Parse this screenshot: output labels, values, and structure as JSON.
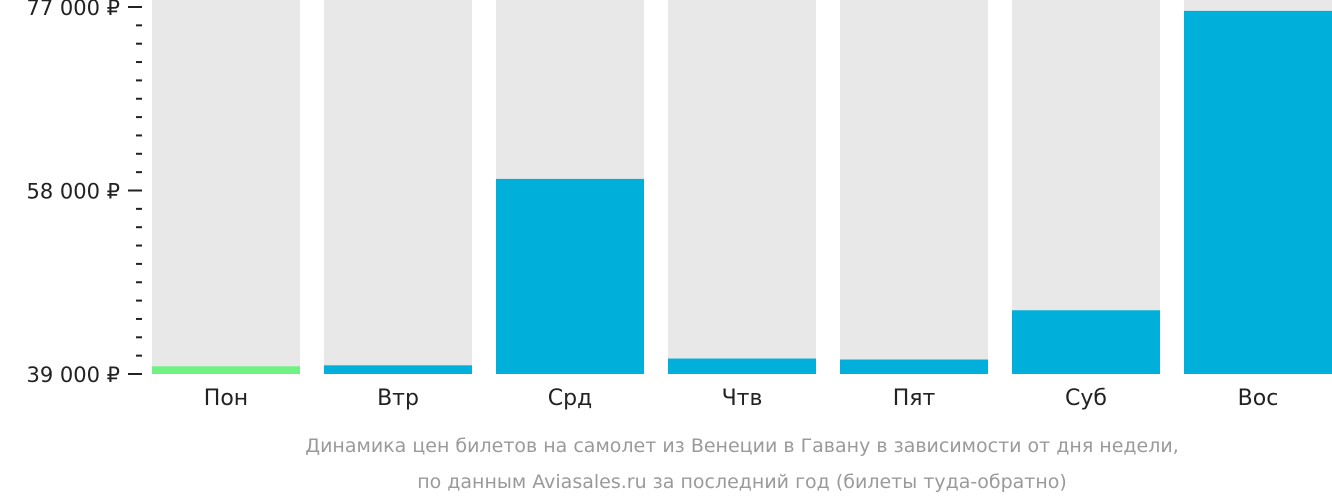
{
  "chart_data": {
    "type": "bar",
    "categories": [
      "Пон",
      "Втр",
      "Срд",
      "Чтв",
      "Пят",
      "Суб",
      "Вос"
    ],
    "values": [
      39800,
      39900,
      59200,
      40600,
      40500,
      45600,
      76600
    ],
    "ylim": [
      39000,
      77000
    ],
    "y_ticks": [
      {
        "value": 39000,
        "label": "39 000 ₽"
      },
      {
        "value": 58000,
        "label": "58 000 ₽"
      },
      {
        "value": 77000,
        "label": "77 000 ₽"
      }
    ],
    "minor_tick_step": 1900,
    "highlight_index": 0,
    "colors": {
      "bar": "#00b0db",
      "highlight": "#70f283",
      "track": "#e8e8e8",
      "axis": "#222222"
    },
    "caption": [
      "Динамика цен билетов на самолет из Венеции в Гавану в зависимости от дня недели,",
      "по данным Aviasales.ru за последний год (билеты туда-обратно)"
    ]
  }
}
